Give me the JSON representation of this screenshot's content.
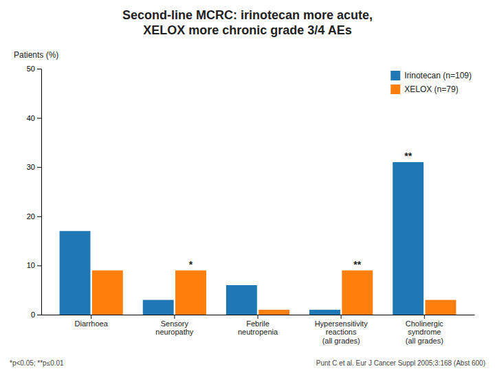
{
  "chart_data": {
    "type": "bar",
    "title": "Second-line MCRC: irinotecan more acute,\nXELOX more chronic grade 3/4 AEs",
    "y_label": "Patients (%)",
    "categories": [
      "Diarrhoea",
      "Sensory\nneuropathy",
      "Febrile\nneutropenia",
      "Hypersensitivity\nreactions\n(all grades)",
      "Cholinergic\nsyndrome\n(all grades)"
    ],
    "series": [
      {
        "name": "Irinotecan (n=109)",
        "values": [
          17,
          3,
          6,
          1,
          31
        ]
      },
      {
        "name": "XELOX (n=79)",
        "values": [
          9,
          9,
          1,
          9,
          3
        ]
      }
    ],
    "ylim": [
      0,
      50
    ],
    "yticks": [
      0,
      10,
      20,
      30,
      40,
      50
    ],
    "grid": false,
    "legend": "upper right",
    "data_labels": false,
    "annotations": [
      {
        "text": "*",
        "category": "Sensory\nneuropathy",
        "series": "XELOX (n=79)"
      },
      {
        "text": "**",
        "category": "Hypersensitivity\nreactions\n(all grades)",
        "series": "XELOX (n=79)"
      },
      {
        "text": "**",
        "category": "Cholinergic\nsyndrome\n(all grades)",
        "series": "Irinotecan (n=109)"
      }
    ],
    "footnotes": [
      "*p<0.05; **p≤0.01",
      "Punt C et al. Eur J Cancer Suppl 2005;3:168 (Abst 600)"
    ]
  }
}
